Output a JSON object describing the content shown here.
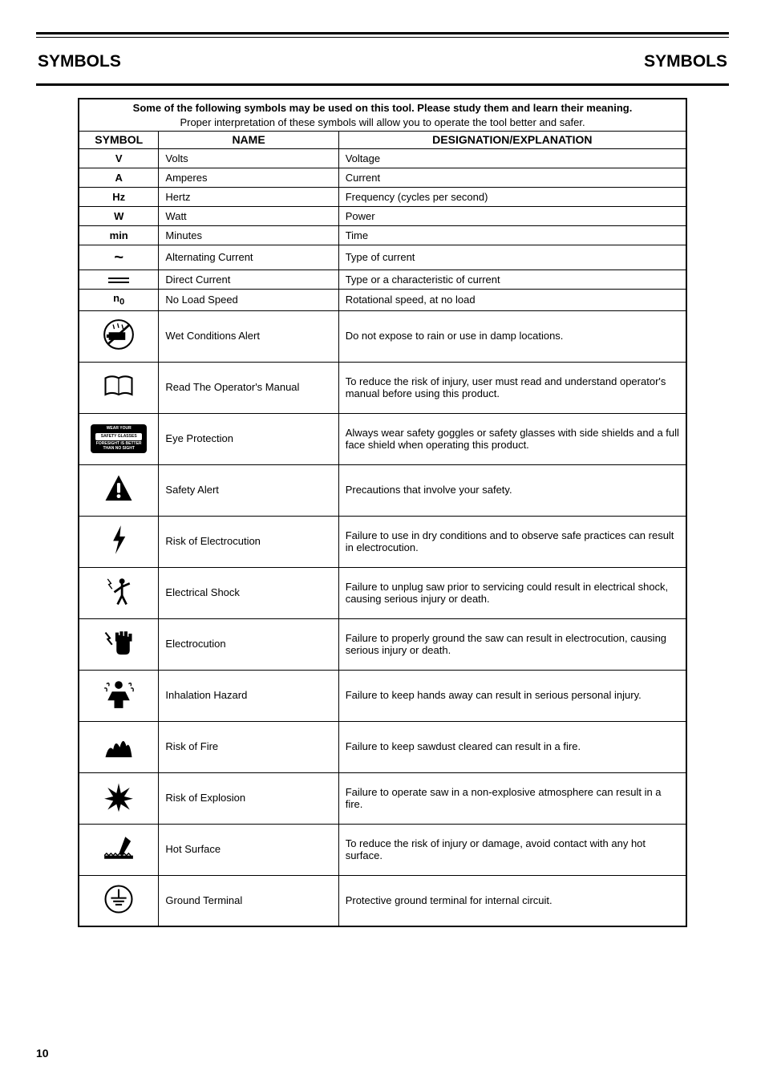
{
  "header": {
    "title_left": "Symbols",
    "title_right": "SYMBOLS"
  },
  "table": {
    "caption_intro": "Some of the following symbols may be used on this tool. Please study them and learn their meaning.",
    "caption_sub": "Proper interpretation of these symbols will allow you to operate the tool better and safer.",
    "col_headers": [
      "SYMBOL",
      "NAME",
      "DESIGNATION/EXPLANATION"
    ],
    "rows": [
      {
        "symbol_text": "V",
        "name": "Volts",
        "explanation": "Voltage",
        "icon": "text"
      },
      {
        "symbol_text": "A",
        "name": "Amperes",
        "explanation": "Current",
        "icon": "text"
      },
      {
        "symbol_text": "Hz",
        "name": "Hertz",
        "explanation": "Frequency (cycles per second)",
        "icon": "text"
      },
      {
        "symbol_text": "W",
        "name": "Watt",
        "explanation": "Power",
        "icon": "text"
      },
      {
        "symbol_text": "min",
        "name": "Minutes",
        "explanation": "Time",
        "icon": "text"
      },
      {
        "symbol_text": "~",
        "name": "Alternating Current",
        "explanation": "Type of current",
        "icon": "ac"
      },
      {
        "symbol_text": "",
        "name": "Direct Current",
        "explanation": "Type or a characteristic of current",
        "icon": "dc"
      },
      {
        "symbol_text": "n₀",
        "name": "No Load Speed",
        "explanation": "Rotational speed, at no load",
        "icon": "text"
      },
      {
        "symbol_text": "",
        "name": "Wet Conditions Alert",
        "explanation": "Do not expose to rain or use in damp locations.",
        "icon": "wet",
        "tall": true
      },
      {
        "symbol_text": "",
        "name": "Read The Operator's Manual",
        "explanation": "To reduce the risk of injury, user must read and understand operator's manual before using this product.",
        "icon": "book",
        "tall": true
      },
      {
        "symbol_text": "",
        "name": "Eye Protection",
        "explanation": "Always wear safety goggles or safety glasses with side shields and a full face shield when operating this product.",
        "icon": "glasses",
        "tall": true
      },
      {
        "symbol_text": "",
        "name": "Safety Alert",
        "explanation": "Precautions that involve your safety.",
        "icon": "alert",
        "tall": true
      },
      {
        "symbol_text": "",
        "name": "Risk of Electrocution",
        "explanation": "Failure to use in dry conditions and to observe safe practices can result in electrocution.",
        "icon": "bolt",
        "tall": true
      },
      {
        "symbol_text": "",
        "name": "Electrical Shock",
        "explanation": "Failure to unplug saw prior to servicing could result in electrical shock, causing serious injury or death.",
        "icon": "shock-person",
        "tall": true
      },
      {
        "symbol_text": "",
        "name": "Electrocution",
        "explanation": "Failure to properly ground the saw can result in electrocution, causing serious injury or death.",
        "icon": "shock-hand",
        "tall": true
      },
      {
        "symbol_text": "",
        "name": "Inhalation Hazard",
        "explanation": "Failure to keep hands away can result in serious personal injury.",
        "icon": "inhale",
        "tall": true
      },
      {
        "symbol_text": "",
        "name": "Risk of Fire",
        "explanation": "Failure to keep sawdust cleared can result in a fire.",
        "icon": "fire",
        "tall": true
      },
      {
        "symbol_text": "",
        "name": "Risk of Explosion",
        "explanation": "Failure to operate saw in a non-explosive atmosphere can result in a fire.",
        "icon": "explode",
        "tall": true
      },
      {
        "symbol_text": "",
        "name": "Hot Surface",
        "explanation": "To reduce the risk of injury or damage, avoid contact with any hot surface.",
        "icon": "hot",
        "tall": true
      },
      {
        "symbol_text": "",
        "name": "Ground Terminal",
        "explanation": "Protective ground terminal for internal circuit.",
        "icon": "ground",
        "tall": true
      }
    ]
  },
  "glasses_badge": {
    "line1": "WEAR YOUR",
    "line2": "SAFETY GLASSES",
    "line3": "FORESIGHT IS BETTER THAN NO SIGHT"
  },
  "footer": {
    "page_number": "10",
    "text_right": ""
  },
  "colors": {
    "text": "#000000",
    "background": "#ffffff",
    "rule": "#000000"
  }
}
